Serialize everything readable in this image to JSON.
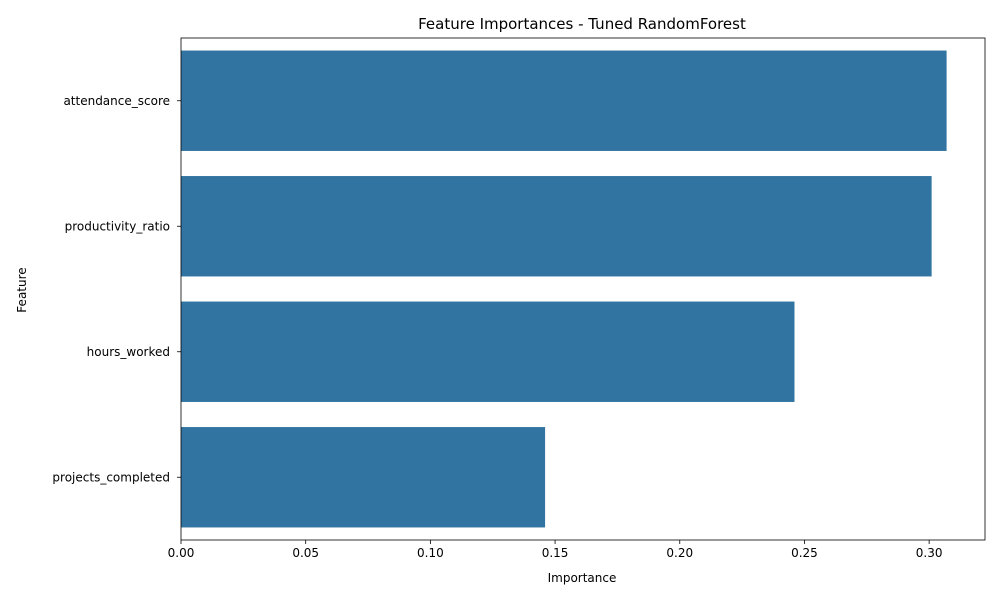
{
  "chart_data": {
    "type": "bar",
    "orientation": "horizontal",
    "title": "Feature Importances - Tuned RandomForest",
    "xlabel": "Importance",
    "ylabel": "Feature",
    "categories": [
      "attendance_score",
      "productivity_ratio",
      "hours_worked",
      "projects_completed"
    ],
    "values": [
      0.307,
      0.301,
      0.246,
      0.146
    ],
    "xlim": [
      0,
      0.3224
    ],
    "xticks": [
      0.0,
      0.05,
      0.1,
      0.15,
      0.2,
      0.25,
      0.3
    ],
    "xtick_labels": [
      "0.00",
      "0.05",
      "0.10",
      "0.15",
      "0.20",
      "0.25",
      "0.30"
    ],
    "bar_color": "#3274a1",
    "grid": false,
    "legend": "none"
  }
}
